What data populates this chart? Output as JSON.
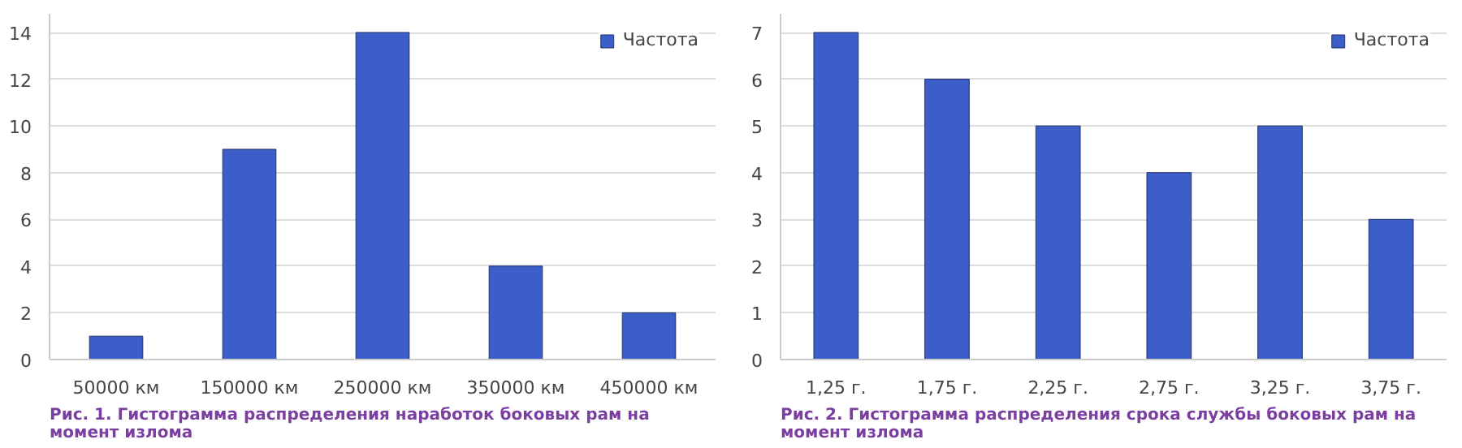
{
  "chart_data": [
    {
      "type": "bar",
      "categories": [
        "50000 км",
        "150000 км",
        "250000 км",
        "350000 км",
        "450000 км"
      ],
      "series": [
        {
          "name": "Частота",
          "color": "#3c5ec8",
          "values": [
            1,
            9,
            14,
            4,
            2
          ]
        }
      ],
      "ylim": [
        0,
        14.8
      ],
      "yticks": [
        0,
        2,
        4,
        6,
        8,
        10,
        12,
        14
      ],
      "grid": "y",
      "legend": "top right",
      "annotations": [
        "Рис. 1. Гистограмма распределения наработок боковых рам на момент излома"
      ]
    },
    {
      "type": "bar",
      "categories": [
        "1,25 г.",
        "1,75 г.",
        "2,25 г.",
        "2,75 г.",
        "3,25 г.",
        "3,75 г."
      ],
      "series": [
        {
          "name": "Частота",
          "color": "#3c5ec8",
          "values": [
            7,
            6,
            5,
            4,
            5,
            3
          ]
        }
      ],
      "ylim": [
        0,
        7.4
      ],
      "yticks": [
        0,
        1,
        2,
        3,
        4,
        5,
        6,
        7
      ],
      "grid": "y",
      "legend": "top right",
      "annotations": [
        "Рис. 2. Гистограмма распределения срока службы боковых рам на момент излома"
      ]
    }
  ]
}
